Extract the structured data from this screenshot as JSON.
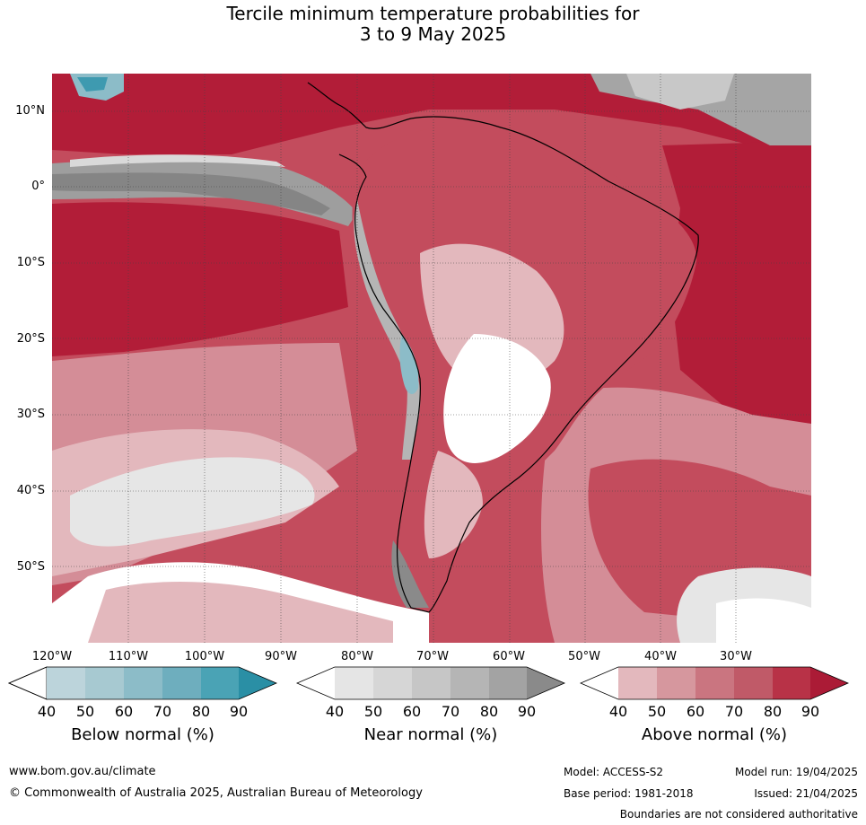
{
  "title": {
    "line1": "Tercile minimum temperature probabilities for",
    "line2": "3 to 9 May 2025"
  },
  "map": {
    "lat_labels": [
      "10°N",
      "0°",
      "10°S",
      "20°S",
      "30°S",
      "40°S",
      "50°S"
    ],
    "lon_labels": [
      "120°W",
      "110°W",
      "100°W",
      "90°W",
      "80°W",
      "70°W",
      "60°W",
      "50°W",
      "40°W",
      "30°W"
    ]
  },
  "legends": [
    {
      "title": "Below normal (%)",
      "ticks": [
        "40",
        "50",
        "60",
        "70",
        "80",
        "90"
      ],
      "colors": [
        "#ffffff",
        "#bcd4db",
        "#a7c9d1",
        "#8cbcc8",
        "#6eaebe",
        "#4aa3b5",
        "#2a8fa5"
      ]
    },
    {
      "title": "Near normal (%)",
      "ticks": [
        "40",
        "50",
        "60",
        "70",
        "80",
        "90"
      ],
      "colors": [
        "#ffffff",
        "#e5e5e5",
        "#d6d6d6",
        "#c6c6c6",
        "#b5b5b5",
        "#a3a3a3",
        "#8a8a8a"
      ]
    },
    {
      "title": "Above normal (%)",
      "ticks": [
        "40",
        "50",
        "60",
        "70",
        "80",
        "90"
      ],
      "colors": [
        "#ffffff",
        "#e3b8bd",
        "#d6979e",
        "#ca7580",
        "#c05a68",
        "#b83247",
        "#ab1b36"
      ]
    }
  ],
  "footer": {
    "website": "www.bom.gov.au/climate",
    "copyright": "© Commonwealth of Australia 2025, Australian Bureau of Meteorology",
    "model": "Model: ACCESS-S2",
    "base_period": "Base period: 1981-2018",
    "model_run": "Model run: 19/04/2025",
    "issued": "Issued: 21/04/2025",
    "disclaimer": "Boundaries are not considered authoritative"
  }
}
